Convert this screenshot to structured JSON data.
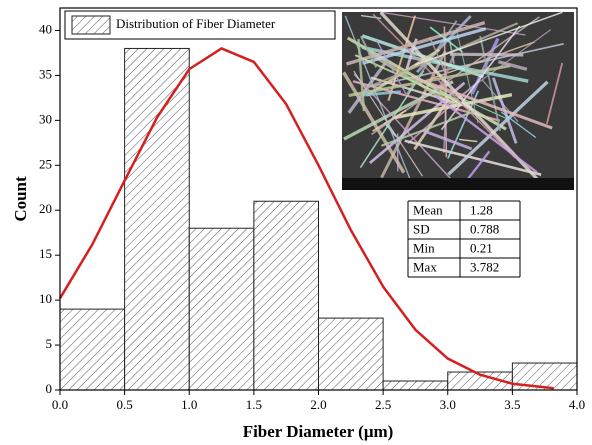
{
  "chart_data": {
    "type": "histogram",
    "xlabel": "Fiber Diameter (μm)",
    "ylabel": "Count",
    "bins": [
      0,
      0.5,
      1.0,
      1.5,
      2.0,
      2.5,
      3.0,
      3.5,
      4.0
    ],
    "series": [
      {
        "name": "Distribution of Fiber Diameter",
        "color": "#555555",
        "values": [
          9,
          38,
          18,
          21,
          8,
          1,
          2,
          3
        ]
      }
    ],
    "curve": {
      "color": "#d42020",
      "x": [
        0,
        0.25,
        0.5,
        0.75,
        1.0,
        1.25,
        1.5,
        1.75,
        2.0,
        2.25,
        2.5,
        2.75,
        3.0,
        3.25,
        3.5,
        3.75,
        3.82
      ],
      "values": [
        10.2,
        16.2,
        23.3,
        30.3,
        35.7,
        38.0,
        36.5,
        31.8,
        25.0,
        17.8,
        11.5,
        6.7,
        3.5,
        1.7,
        0.7,
        0.3,
        0.2
      ]
    },
    "xlim": [
      0,
      4
    ],
    "ylim": [
      0,
      42.5
    ],
    "xticks": [
      {
        "value": 0,
        "label": "0.0"
      },
      {
        "value": 0.5,
        "label": "0.5"
      },
      {
        "value": 1,
        "label": "1.0"
      },
      {
        "value": 1.5,
        "label": "1.5"
      },
      {
        "value": 2,
        "label": "2.0"
      },
      {
        "value": 2.5,
        "label": "2.5"
      },
      {
        "value": 3,
        "label": "3.0"
      },
      {
        "value": 3.5,
        "label": "3.5"
      },
      {
        "value": 4,
        "label": "4.0"
      }
    ],
    "yticks": [
      0,
      5,
      10,
      15,
      20,
      25,
      30,
      35,
      40
    ],
    "stats_table": [
      [
        "Mean",
        "1.28"
      ],
      [
        "SD",
        "0.788"
      ],
      [
        "Min",
        "0.21"
      ],
      [
        "Max",
        "3.782"
      ]
    ]
  }
}
